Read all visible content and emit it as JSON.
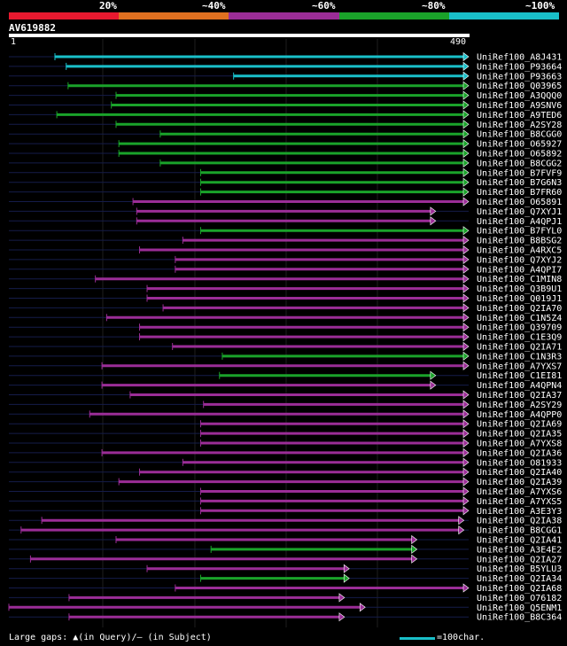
{
  "legend": [
    {
      "label": "20%",
      "color": "#e8192f"
    },
    {
      "label": "~40%",
      "color": "#e07020"
    },
    {
      "label": "~60%",
      "color": "#9b2d97"
    },
    {
      "label": "~80%",
      "color": "#1aa32a"
    },
    {
      "label": "~100%",
      "color": "#19bfc9"
    }
  ],
  "query_id": "AV619882",
  "footer": {
    "gaps_text": "Large gaps: ▲(in Query)/– (in Subject)",
    "scale_text": "=100char."
  },
  "chart_data": {
    "type": "alignment",
    "query_length": 490,
    "ruler_start": "1",
    "ruler_end": "490",
    "hits": [
      {
        "name": "UniRef100_A8J431",
        "start": 50,
        "end": 490,
        "identity": "~100%"
      },
      {
        "name": "UniRef100_P93664",
        "start": 62,
        "end": 490,
        "identity": "~100%"
      },
      {
        "name": "UniRef100_P93663",
        "start": 240,
        "end": 490,
        "identity": "~100%"
      },
      {
        "name": "UniRef100_Q03965",
        "start": 64,
        "end": 490,
        "identity": "~80%"
      },
      {
        "name": "UniRef100_A3QQQ0",
        "start": 115,
        "end": 490,
        "identity": "~80%"
      },
      {
        "name": "UniRef100_A9SNV6",
        "start": 110,
        "end": 490,
        "identity": "~80%"
      },
      {
        "name": "UniRef100_A9TED6",
        "start": 52,
        "end": 490,
        "identity": "~80%"
      },
      {
        "name": "UniRef100_A2SY28",
        "start": 115,
        "end": 490,
        "identity": "~80%"
      },
      {
        "name": "UniRef100_B8CGG0",
        "start": 162,
        "end": 490,
        "identity": "~80%"
      },
      {
        "name": "UniRef100_O65927",
        "start": 118,
        "end": 490,
        "identity": "~80%"
      },
      {
        "name": "UniRef100_O65892",
        "start": 118,
        "end": 490,
        "identity": "~80%"
      },
      {
        "name": "UniRef100_B8CGG2",
        "start": 162,
        "end": 490,
        "identity": "~80%"
      },
      {
        "name": "UniRef100_B7FVF9",
        "start": 205,
        "end": 490,
        "identity": "~80%"
      },
      {
        "name": "UniRef100_B7G6N3",
        "start": 205,
        "end": 490,
        "identity": "~80%"
      },
      {
        "name": "UniRef100_B7FR60",
        "start": 205,
        "end": 490,
        "identity": "~80%"
      },
      {
        "name": "UniRef100_O65891",
        "start": 133,
        "end": 490,
        "identity": "~60%"
      },
      {
        "name": "UniRef100_Q7XYJ1",
        "start": 137,
        "end": 455,
        "identity": "~60%"
      },
      {
        "name": "UniRef100_A4QPJ1",
        "start": 137,
        "end": 455,
        "identity": "~60%"
      },
      {
        "name": "UniRef100_B7FYL0",
        "start": 205,
        "end": 490,
        "identity": "~80%"
      },
      {
        "name": "UniRef100_B8BSG2",
        "start": 186,
        "end": 490,
        "identity": "~60%"
      },
      {
        "name": "UniRef100_A4RXC5",
        "start": 140,
        "end": 490,
        "identity": "~60%"
      },
      {
        "name": "UniRef100_Q7XYJ2",
        "start": 178,
        "end": 490,
        "identity": "~60%"
      },
      {
        "name": "UniRef100_A4QPI7",
        "start": 178,
        "end": 490,
        "identity": "~60%"
      },
      {
        "name": "UniRef100_C1MIN8",
        "start": 93,
        "end": 490,
        "identity": "~60%"
      },
      {
        "name": "UniRef100_Q3B9U1",
        "start": 148,
        "end": 490,
        "identity": "~60%"
      },
      {
        "name": "UniRef100_Q019J1",
        "start": 148,
        "end": 490,
        "identity": "~60%"
      },
      {
        "name": "UniRef100_Q2IA70",
        "start": 165,
        "end": 490,
        "identity": "~60%"
      },
      {
        "name": "UniRef100_C1N5Z4",
        "start": 105,
        "end": 490,
        "identity": "~60%"
      },
      {
        "name": "UniRef100_Q39709",
        "start": 140,
        "end": 490,
        "identity": "~60%"
      },
      {
        "name": "UniRef100_C1E3Q9",
        "start": 140,
        "end": 490,
        "identity": "~60%"
      },
      {
        "name": "UniRef100_Q2IA71",
        "start": 175,
        "end": 490,
        "identity": "~60%"
      },
      {
        "name": "UniRef100_C1N3R3",
        "start": 228,
        "end": 490,
        "identity": "~80%"
      },
      {
        "name": "UniRef100_A7YXS7",
        "start": 100,
        "end": 490,
        "identity": "~60%"
      },
      {
        "name": "UniRef100_C1EI81",
        "start": 225,
        "end": 455,
        "identity": "~80%"
      },
      {
        "name": "UniRef100_A4QPN4",
        "start": 100,
        "end": 455,
        "identity": "~60%"
      },
      {
        "name": "UniRef100_Q2IA37",
        "start": 130,
        "end": 490,
        "identity": "~60%"
      },
      {
        "name": "UniRef100_A2SY29",
        "start": 208,
        "end": 490,
        "identity": "~60%"
      },
      {
        "name": "UniRef100_A4QPP0",
        "start": 87,
        "end": 490,
        "identity": "~60%"
      },
      {
        "name": "UniRef100_Q2IA69",
        "start": 205,
        "end": 490,
        "identity": "~60%"
      },
      {
        "name": "UniRef100_Q2IA35",
        "start": 205,
        "end": 490,
        "identity": "~60%"
      },
      {
        "name": "UniRef100_A7YXS8",
        "start": 205,
        "end": 490,
        "identity": "~60%"
      },
      {
        "name": "UniRef100_Q2IA36",
        "start": 100,
        "end": 490,
        "identity": "~60%"
      },
      {
        "name": "UniRef100_O81933",
        "start": 186,
        "end": 490,
        "identity": "~60%"
      },
      {
        "name": "UniRef100_Q2IA40",
        "start": 140,
        "end": 490,
        "identity": "~60%"
      },
      {
        "name": "UniRef100_Q2IA39",
        "start": 118,
        "end": 490,
        "identity": "~60%"
      },
      {
        "name": "UniRef100_A7YXS6",
        "start": 205,
        "end": 490,
        "identity": "~60%"
      },
      {
        "name": "UniRef100_A7YXS5",
        "start": 205,
        "end": 490,
        "identity": "~60%"
      },
      {
        "name": "UniRef100_A3E3Y3",
        "start": 205,
        "end": 490,
        "identity": "~60%"
      },
      {
        "name": "UniRef100_Q2IA38",
        "start": 36,
        "end": 485,
        "identity": "~60%"
      },
      {
        "name": "UniRef100_B8CGG1",
        "start": 14,
        "end": 485,
        "identity": "~60%"
      },
      {
        "name": "UniRef100_Q2IA41",
        "start": 115,
        "end": 435,
        "identity": "~60%"
      },
      {
        "name": "UniRef100_A3E4E2",
        "start": 216,
        "end": 435,
        "identity": "~80%"
      },
      {
        "name": "UniRef100_Q2IA27",
        "start": 24,
        "end": 435,
        "identity": "~60%"
      },
      {
        "name": "UniRef100_B5YLU3",
        "start": 148,
        "end": 363,
        "identity": "~60%"
      },
      {
        "name": "UniRef100_Q2IA34",
        "start": 205,
        "end": 363,
        "identity": "~80%"
      },
      {
        "name": "UniRef100_Q2IA68",
        "start": 178,
        "end": 490,
        "identity": "~60%"
      },
      {
        "name": "UniRef100_O76182",
        "start": 65,
        "end": 358,
        "identity": "~60%"
      },
      {
        "name": "UniRef100_Q5ENM1",
        "start": 1,
        "end": 380,
        "identity": "~60%"
      },
      {
        "name": "UniRef100_B8C364",
        "start": 65,
        "end": 358,
        "identity": "~60%"
      }
    ]
  }
}
